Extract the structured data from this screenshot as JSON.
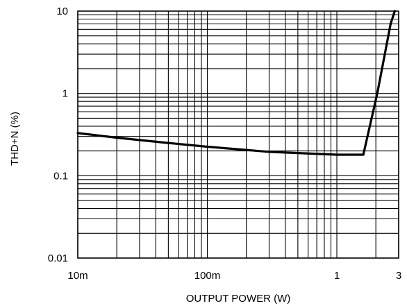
{
  "chart_data": {
    "type": "line",
    "title": "",
    "xlabel": "OUTPUT POWER (W)",
    "ylabel": "THD+N (%)",
    "x_scale": "log",
    "y_scale": "log",
    "xlim": [
      0.01,
      3
    ],
    "ylim": [
      0.01,
      10
    ],
    "grid": true,
    "x_ticks": [
      {
        "value": 0.01,
        "label": "10m"
      },
      {
        "value": 0.1,
        "label": "100m"
      },
      {
        "value": 1,
        "label": "1"
      },
      {
        "value": 3,
        "label": "3"
      }
    ],
    "y_ticks": [
      {
        "value": 10,
        "label": "10"
      },
      {
        "value": 1,
        "label": "1"
      },
      {
        "value": 0.1,
        "label": "0.1"
      },
      {
        "value": 0.01,
        "label": "0.01"
      }
    ],
    "series": [
      {
        "color": "#000000",
        "points": [
          [
            0.01,
            0.33
          ],
          [
            0.02,
            0.29
          ],
          [
            0.05,
            0.25
          ],
          [
            0.1,
            0.225
          ],
          [
            0.3,
            0.195
          ],
          [
            1,
            0.18
          ],
          [
            1.6,
            0.18
          ],
          [
            2.05,
            1.0
          ],
          [
            2.6,
            7.0
          ],
          [
            2.8,
            10.0
          ]
        ]
      }
    ]
  }
}
